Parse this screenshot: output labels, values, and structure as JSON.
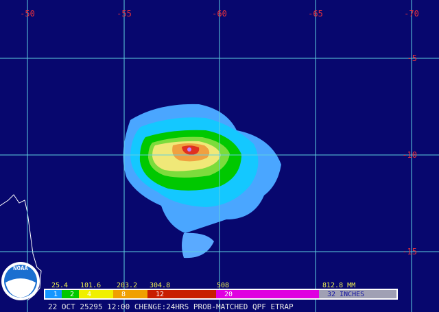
{
  "map": {
    "longitude_labels": [
      "-50",
      "-55",
      "-60",
      "-65",
      "-70"
    ],
    "latitude_labels": [
      "-5",
      "-10",
      "-15"
    ],
    "logo": "NOAA",
    "legend": {
      "mm_labels": [
        "25.4",
        "101.6",
        "203.2",
        "304.8",
        "508",
        "812.8 MM"
      ],
      "inch_labels": [
        "1",
        "2",
        "4",
        "8",
        "12",
        "20",
        "32 INCHES"
      ]
    },
    "footer": "22 OCT 25295 12:00 CHENGE:24HRS PROB-MATCHED QPF ETRAP"
  }
}
